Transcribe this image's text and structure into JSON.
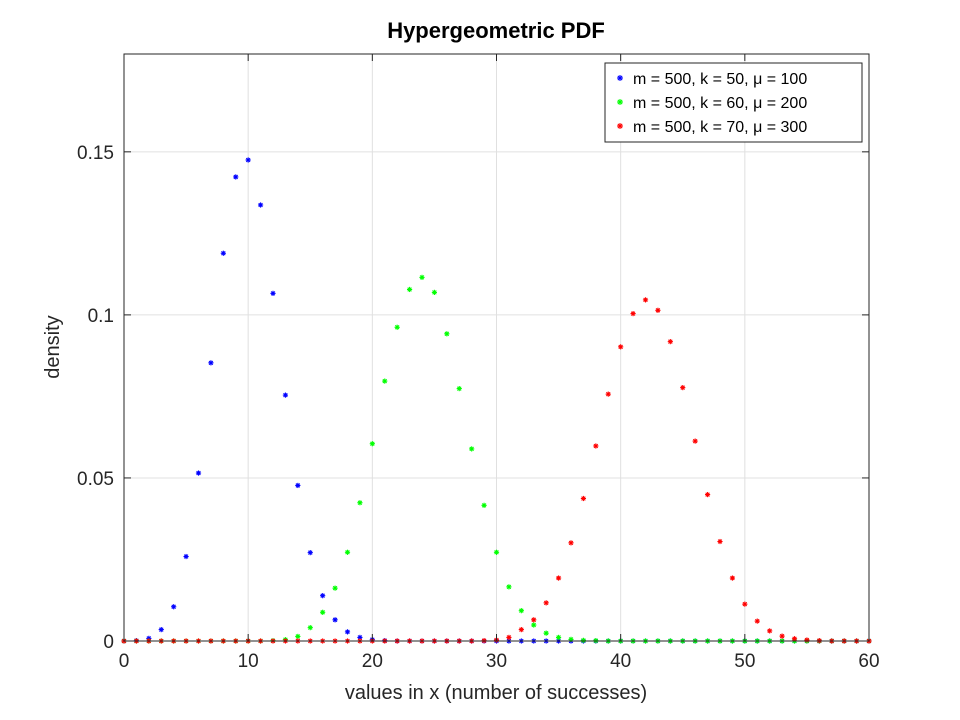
{
  "chart_data": {
    "type": "scatter",
    "title": "Hypergeometric PDF",
    "xlabel": "values in x (number of successes)",
    "ylabel": "density",
    "xlim": [
      0,
      60
    ],
    "ylim": [
      0,
      0.18
    ],
    "xticks": [
      0,
      10,
      20,
      30,
      40,
      50,
      60
    ],
    "xtick_labels": [
      "0",
      "10",
      "20",
      "30",
      "40",
      "50",
      "60"
    ],
    "yticks": [
      0,
      0.05,
      0.1,
      0.15
    ],
    "ytick_labels": [
      "0",
      "0.05",
      "0.1",
      "0.15"
    ],
    "grid": true,
    "legend_position": "top-right",
    "marker": "*",
    "series": [
      {
        "name": "m = 500, k = 50, μ = 100",
        "color": "#0000ff",
        "x": [
          0,
          1,
          2,
          3,
          4,
          5,
          6,
          7,
          8,
          9,
          10,
          11,
          12,
          13,
          14,
          15,
          16,
          17,
          18,
          19,
          20,
          21,
          22,
          23,
          24,
          25,
          26,
          27,
          28,
          29,
          30,
          31,
          32,
          33,
          34,
          35,
          36,
          37,
          38,
          39,
          40,
          41,
          42,
          43,
          44,
          45,
          46,
          47,
          48,
          49,
          50,
          51,
          52,
          53,
          54,
          55,
          56,
          57,
          58,
          59,
          60
        ],
        "y": [
          0,
          0.0001,
          0.0008,
          0.0035,
          0.0105,
          0.0259,
          0.0515,
          0.0853,
          0.1189,
          0.1423,
          0.1475,
          0.1337,
          0.1066,
          0.0754,
          0.0477,
          0.0271,
          0.0139,
          0.0065,
          0.0028,
          0.0011,
          0.0004,
          0.0001,
          0,
          0,
          0,
          0,
          0,
          0,
          0,
          0,
          0,
          0,
          0,
          0,
          0,
          0,
          0,
          0,
          0,
          0,
          0,
          0,
          0,
          0,
          0,
          0,
          0,
          0,
          0,
          0,
          0,
          0,
          0,
          0,
          0,
          0,
          0,
          0,
          0,
          0,
          0
        ]
      },
      {
        "name": "m = 500, k = 60, μ = 200",
        "color": "#00ff00",
        "x": [
          0,
          1,
          2,
          3,
          4,
          5,
          6,
          7,
          8,
          9,
          10,
          11,
          12,
          13,
          14,
          15,
          16,
          17,
          18,
          19,
          20,
          21,
          22,
          23,
          24,
          25,
          26,
          27,
          28,
          29,
          30,
          31,
          32,
          33,
          34,
          35,
          36,
          37,
          38,
          39,
          40,
          41,
          42,
          43,
          44,
          45,
          46,
          47,
          48,
          49,
          50,
          51,
          52,
          53,
          54,
          55,
          56,
          57,
          58,
          59,
          60
        ],
        "y": [
          0,
          0,
          0,
          0,
          0,
          0,
          0,
          0,
          0,
          0,
          0,
          0,
          0.0001,
          0.0004,
          0.0014,
          0.0041,
          0.0088,
          0.0162,
          0.0272,
          0.0424,
          0.0605,
          0.0797,
          0.0962,
          0.1078,
          0.1115,
          0.1069,
          0.0942,
          0.0774,
          0.0589,
          0.0416,
          0.0272,
          0.0166,
          0.0093,
          0.0049,
          0.0024,
          0.0011,
          0.0005,
          0.0002,
          0.0001,
          0,
          0,
          0,
          0,
          0,
          0,
          0,
          0,
          0,
          0,
          0,
          0,
          0,
          0,
          0,
          0,
          0,
          0,
          0,
          0,
          0,
          0
        ]
      },
      {
        "name": "m = 500, k = 70, μ = 300",
        "color": "#ff0000",
        "x": [
          0,
          1,
          2,
          3,
          4,
          5,
          6,
          7,
          8,
          9,
          10,
          11,
          12,
          13,
          14,
          15,
          16,
          17,
          18,
          19,
          20,
          21,
          22,
          23,
          24,
          25,
          26,
          27,
          28,
          29,
          30,
          31,
          32,
          33,
          34,
          35,
          36,
          37,
          38,
          39,
          40,
          41,
          42,
          43,
          44,
          45,
          46,
          47,
          48,
          49,
          50,
          51,
          52,
          53,
          54,
          55,
          56,
          57,
          58,
          59,
          60
        ],
        "y": [
          0,
          0,
          0,
          0,
          0,
          0,
          0,
          0,
          0,
          0,
          0,
          0,
          0,
          0,
          0,
          0,
          0,
          0,
          0,
          0,
          0,
          0,
          0,
          0,
          0,
          0,
          0,
          0,
          0,
          0.0001,
          0.0003,
          0.0011,
          0.0035,
          0.0065,
          0.0117,
          0.0193,
          0.0301,
          0.0437,
          0.0598,
          0.0757,
          0.0902,
          0.1004,
          0.1046,
          0.1014,
          0.0918,
          0.0777,
          0.0613,
          0.0449,
          0.0305,
          0.0193,
          0.0113,
          0.0061,
          0.0031,
          0.0015,
          0.0007,
          0.0003,
          0.0001,
          0,
          0,
          0,
          0
        ]
      }
    ]
  }
}
